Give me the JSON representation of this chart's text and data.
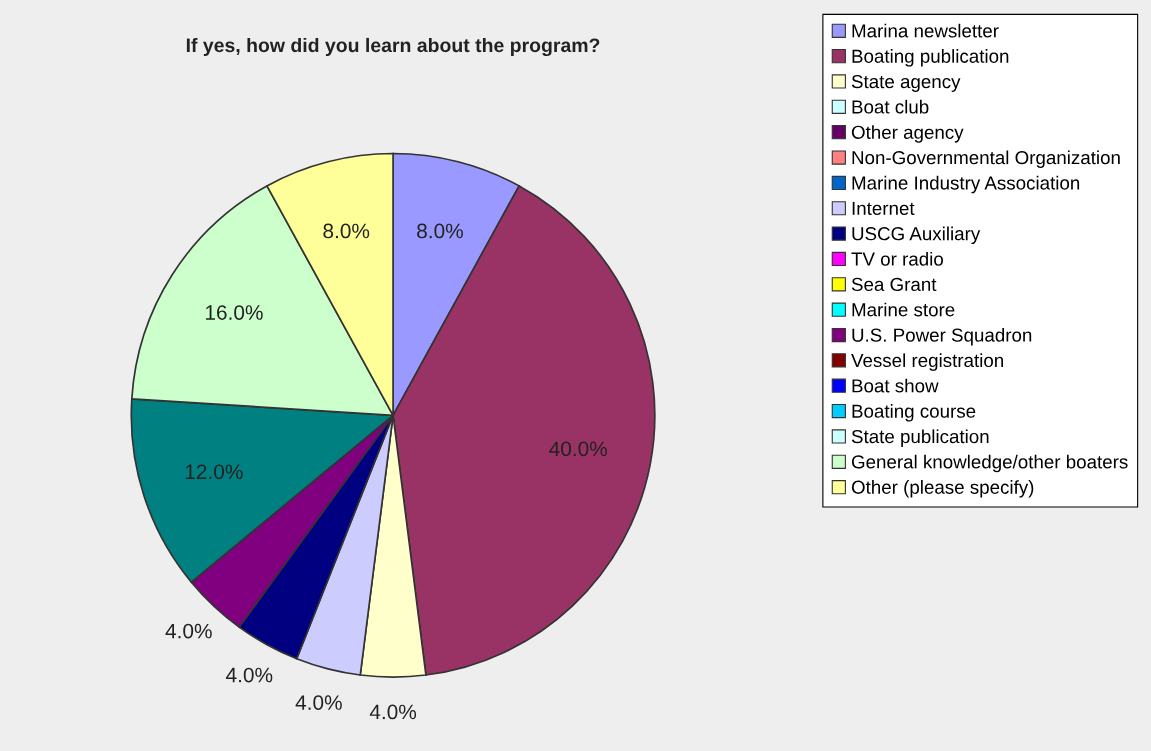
{
  "chart_data": {
    "type": "pie",
    "title": "If yes, how did you learn about the program?",
    "categories": [
      "Marina newsletter",
      "Boating publication",
      "State agency",
      "Boat club",
      "Other agency",
      "Non-Governmental Organization",
      "Marine Industry Association",
      "Internet",
      "USCG Auxiliary",
      "TV or radio",
      "Sea Grant",
      "Marine store",
      "U.S. Power Squadron",
      "Vessel registration",
      null,
      "Boat show",
      "Boating course",
      "State publication",
      "General knowledge/other boaters",
      "Other (please specify)"
    ],
    "values": [
      8,
      40,
      4,
      0,
      0,
      0,
      0,
      4,
      4,
      0,
      0,
      0,
      4,
      0,
      12,
      0,
      0,
      0,
      16,
      8
    ],
    "value_labels": [
      "8.0%",
      "40.0%",
      "4.0%",
      null,
      null,
      null,
      null,
      "4.0%",
      "4.0%",
      null,
      null,
      null,
      "4.0%",
      null,
      "12.0%",
      null,
      null,
      null,
      "16.0%",
      "8.0%"
    ],
    "colors": [
      "#9999ff",
      "#993366",
      "#ffffcc",
      "#ccffff",
      "#660066",
      "#ff8080",
      "#0066cc",
      "#ccccff",
      "#000080",
      "#ff00ff",
      "#ffff00",
      "#00ffff",
      "#800080",
      "#800000",
      "#008080",
      "#0000ff",
      "#00ccff",
      "#ccffff",
      "#ccffcc",
      "#ffff99"
    ],
    "legend": "top right"
  }
}
